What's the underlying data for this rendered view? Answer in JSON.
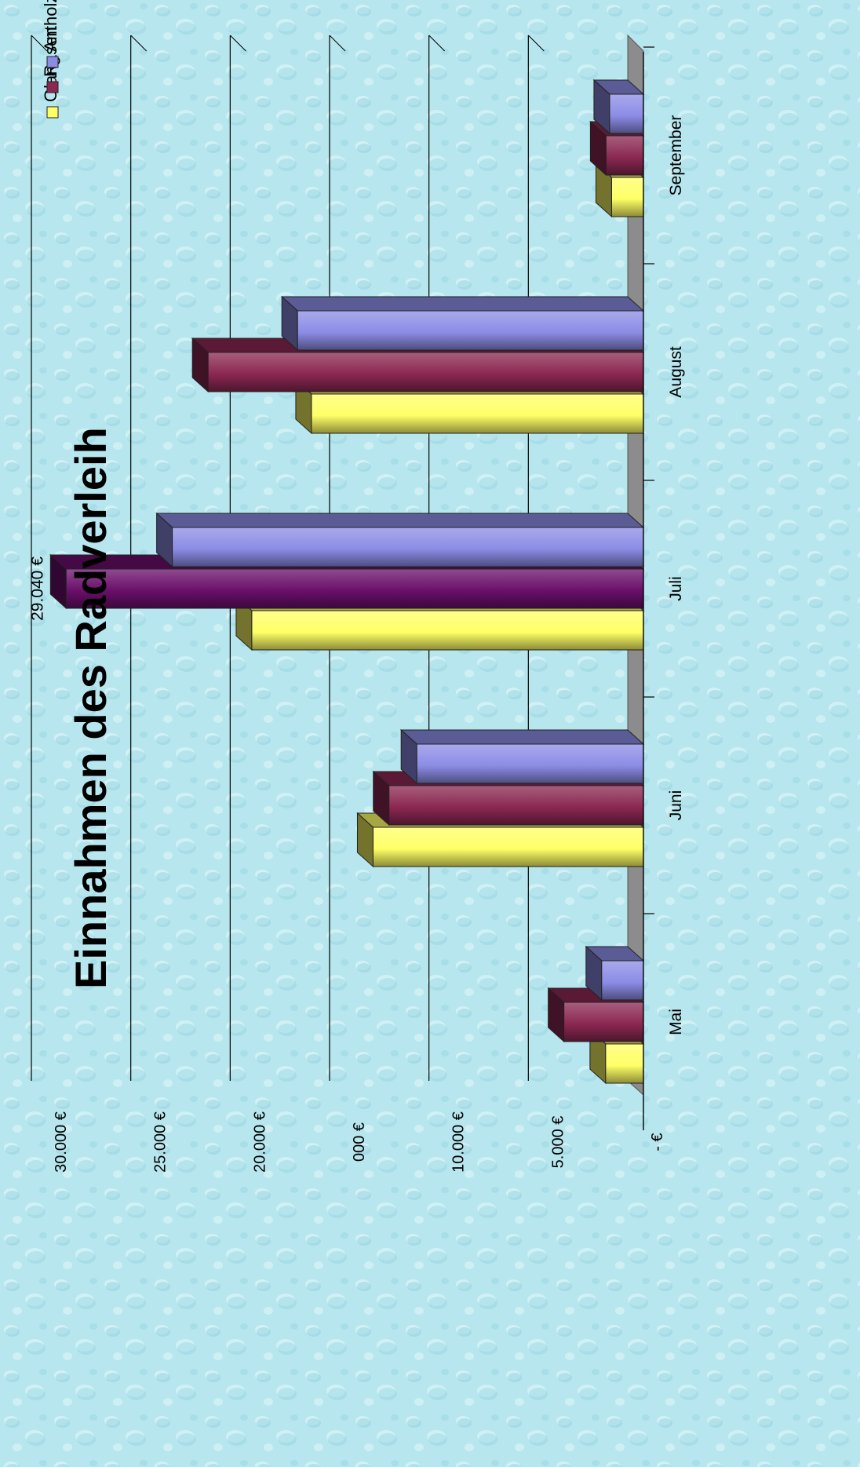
{
  "chart_data": {
    "type": "bar",
    "title": "Einnahmen des Radverleih",
    "categories": [
      "Mai",
      "Juni",
      "Juli",
      "August",
      "September"
    ],
    "series": [
      {
        "name": "Olang",
        "color": "#ffff66",
        "values": [
          1900,
          13600,
          19700,
          16700,
          1600
        ]
      },
      {
        "name": "Rasen",
        "color": "#8b2852",
        "values": [
          4000,
          12800,
          29040,
          21900,
          1880
        ]
      },
      {
        "name": "Antholz",
        "color": "#8c8ce6",
        "values": [
          2100,
          11400,
          23700,
          17400,
          1700
        ]
      }
    ],
    "highlight": {
      "category": "Juli",
      "series": "Rasen",
      "color": "#6a0f6a"
    },
    "y_tick_labels": [
      "- €",
      "5.000 €",
      "10.000 €",
      "000 €",
      "20.000 €",
      "25.000 €",
      "30.000 €"
    ],
    "data_labels": [
      {
        "category": "Juli",
        "series": "Rasen",
        "text": "29.040 €"
      }
    ],
    "ylim": [
      0,
      30000
    ],
    "gridlines": true,
    "legend_position": "top-right",
    "orientation": "rotated-90-clockwise"
  },
  "colors": {
    "background": "#b7e6ee",
    "floor": "#8c8c8c",
    "grid": "#000000"
  }
}
